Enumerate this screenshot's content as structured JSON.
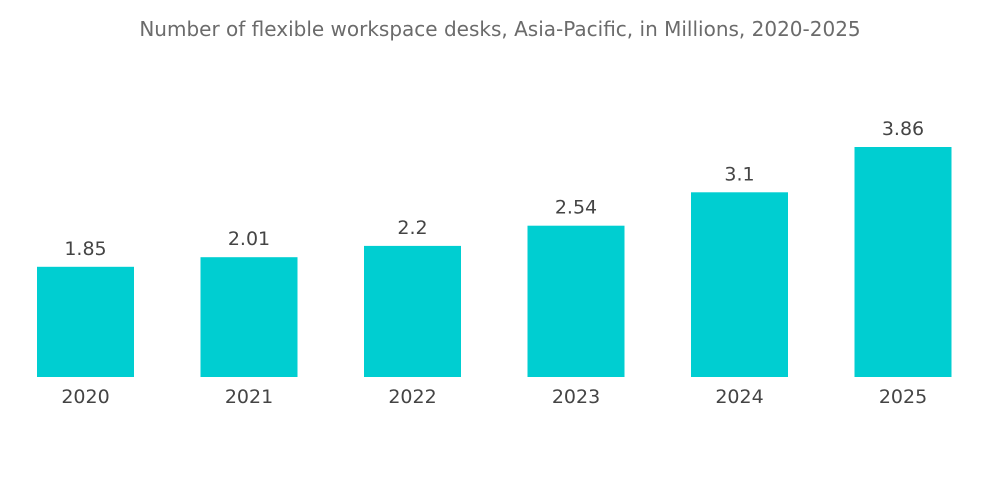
{
  "chart_data": {
    "type": "bar",
    "title": "Number of flexible workspace desks, Asia-Pacific, in Millions, 2020-2025",
    "xlabel": "",
    "ylabel": "",
    "categories": [
      "2020",
      "2021",
      "2022",
      "2023",
      "2024",
      "2025"
    ],
    "values": [
      1.85,
      2.01,
      2.2,
      2.54,
      3.1,
      3.86
    ],
    "value_labels": [
      "1.85",
      "2.01",
      "2.2",
      "2.54",
      "3.1",
      "3.86"
    ],
    "ylim": [
      0,
      4.2
    ],
    "grid": false,
    "legend": "none",
    "bar_color": "#00ced1"
  }
}
